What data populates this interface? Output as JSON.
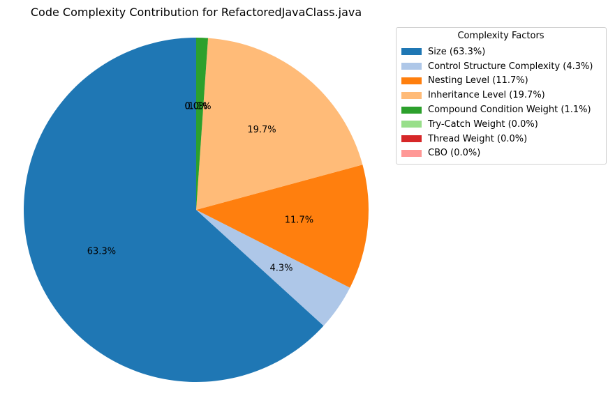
{
  "chart_data": {
    "type": "pie",
    "title": "Code Complexity Contribution for RefactoredJavaClass.java",
    "legend_title": "Complexity Factors",
    "legend_position": "top-right",
    "start_angle_deg": 90,
    "direction": "counterclockwise",
    "slices": [
      {
        "name": "Size",
        "legend_label": "Size (63.3%)",
        "value": 63.3,
        "label": "63.3%",
        "color": "#1f77b4"
      },
      {
        "name": "Control Structure Complexity",
        "legend_label": "Control Structure Complexity (4.3%)",
        "value": 4.3,
        "label": "4.3%",
        "color": "#aec7e8"
      },
      {
        "name": "Nesting Level",
        "legend_label": "Nesting Level (11.7%)",
        "value": 11.7,
        "label": "11.7%",
        "color": "#ff7f0e"
      },
      {
        "name": "Inheritance Level",
        "legend_label": "Inheritance Level (19.7%)",
        "value": 19.7,
        "label": "19.7%",
        "color": "#ffbb78"
      },
      {
        "name": "Compound Condition Weight",
        "legend_label": "Compound Condition Weight (1.1%)",
        "value": 1.1,
        "label": "1.1%",
        "color": "#2ca02c"
      },
      {
        "name": "Try-Catch Weight",
        "legend_label": "Try-Catch Weight (0.0%)",
        "value": 0.0,
        "label": "0.0%",
        "color": "#98df8a"
      },
      {
        "name": "Thread Weight",
        "legend_label": "Thread Weight (0.0%)",
        "value": 0.0,
        "label": "0.0%",
        "color": "#d62728"
      },
      {
        "name": "CBO",
        "legend_label": "CBO (0.0%)",
        "value": 0.0,
        "label": "0.0%",
        "color": "#ff9896"
      }
    ]
  }
}
